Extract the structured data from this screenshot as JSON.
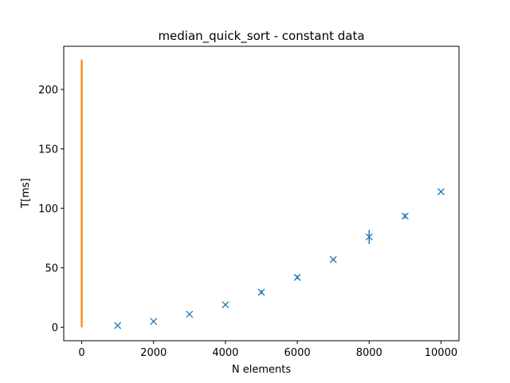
{
  "colors": {
    "series_points": "#1f77b4",
    "series_line": "#ff7f0e",
    "axes": "#000000",
    "background": "#ffffff"
  },
  "chart_data": {
    "type": "scatter",
    "title": "median_quick_sort - constant data",
    "xlabel": "N elements",
    "ylabel": "T[ms]",
    "xlim": [
      -500,
      10500
    ],
    "ylim": [
      -11.25,
      236.25
    ],
    "x_ticks": [
      0,
      2000,
      4000,
      6000,
      8000,
      10000
    ],
    "x_tick_labels": [
      "0",
      "2000",
      "4000",
      "6000",
      "8000",
      "10000"
    ],
    "y_ticks": [
      0,
      50,
      100,
      150,
      200
    ],
    "y_tick_labels": [
      "0",
      "50",
      "100",
      "150",
      "200"
    ],
    "grid": false,
    "series": [
      {
        "marker": "x",
        "x": [
          1000,
          2000,
          3000,
          4000,
          5000,
          6000,
          7000,
          8000,
          9000,
          10000
        ],
        "values": [
          1.5,
          5,
          11,
          19,
          29.5,
          42,
          57,
          76,
          93.5,
          114
        ],
        "errors": [
          0.5,
          0.5,
          0.8,
          0.6,
          1.5,
          1.5,
          0.8,
          6,
          2,
          0.8
        ]
      },
      {
        "marker": "line",
        "x": [
          0,
          0
        ],
        "values": [
          0,
          225
        ]
      }
    ]
  }
}
